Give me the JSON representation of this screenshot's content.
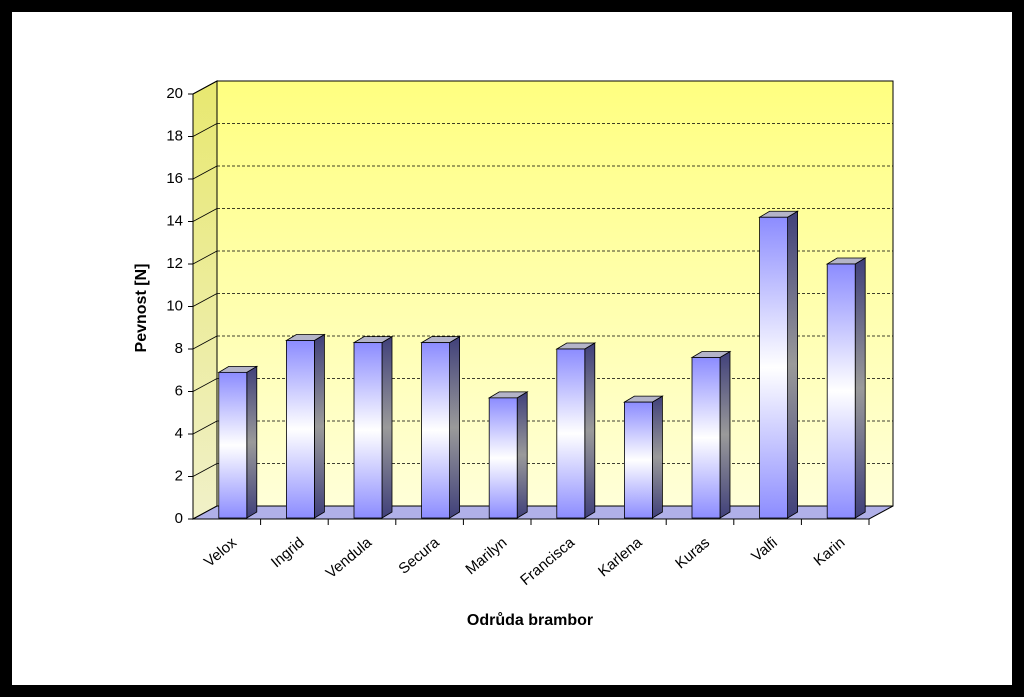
{
  "chart_data": {
    "type": "bar3d",
    "y_label": "Pevnost [N]",
    "x_label": "Odrůda brambor",
    "categories": [
      "Velox",
      "Ingrid",
      "Vendula",
      "Secura",
      "Marilyn",
      "Francisca",
      "Karlena",
      "Kuras",
      "Valfi",
      "Karin"
    ],
    "values": [
      6.9,
      8.4,
      8.3,
      8.3,
      5.7,
      8.0,
      5.5,
      7.6,
      14.2,
      12.0
    ],
    "color": "#8c8cff",
    "ylim": [
      0,
      20
    ],
    "yticks": [
      0,
      2,
      4,
      6,
      8,
      10,
      12,
      14,
      16,
      18,
      20
    ],
    "grid": true
  }
}
